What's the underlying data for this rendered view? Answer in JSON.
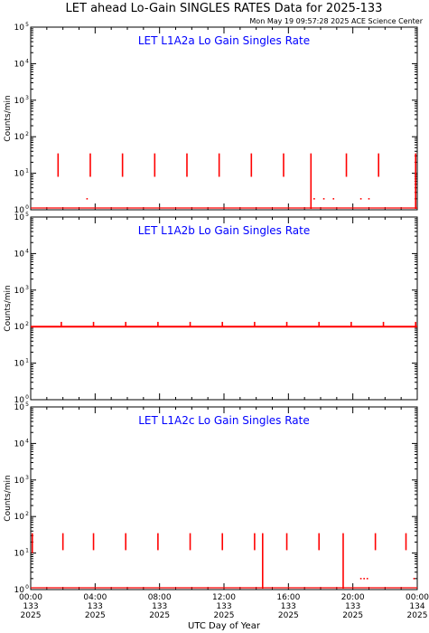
{
  "title": "LET ahead Lo-Gain SINGLES RATES Data for 2025-133",
  "timestamp": "Mon May 19 09:57:28 2025 ACE Science Center",
  "xlabel": "UTC Day of Year",
  "ylabel": "Counts/min",
  "colors": {
    "series": "#ff0000",
    "panel_title": "#0000ff",
    "axes": "#000000"
  },
  "x_ticks": [
    {
      "time": "00:00",
      "doy": "133",
      "year": "2025"
    },
    {
      "time": "04:00",
      "doy": "133",
      "year": "2025"
    },
    {
      "time": "08:00",
      "doy": "133",
      "year": "2025"
    },
    {
      "time": "12:00",
      "doy": "133",
      "year": "2025"
    },
    {
      "time": "16:00",
      "doy": "133",
      "year": "2025"
    },
    {
      "time": "20:00",
      "doy": "133",
      "year": "2025"
    },
    {
      "time": "00:00",
      "doy": "134",
      "year": "2025"
    }
  ],
  "y_tick_labels": [
    {
      "base": "10",
      "exp": "0"
    },
    {
      "base": "10",
      "exp": "1"
    },
    {
      "base": "10",
      "exp": "2"
    },
    {
      "base": "10",
      "exp": "3"
    },
    {
      "base": "10",
      "exp": "4"
    },
    {
      "base": "10",
      "exp": "5"
    }
  ],
  "chart_data": [
    {
      "type": "line",
      "title": "LET L1A2a Lo Gain Singles Rate",
      "xlabel": "UTC Day of Year",
      "ylabel": "Counts/min",
      "xlim": [
        0,
        24
      ],
      "ylim": [
        1,
        100000
      ],
      "log_y": true,
      "baseline": 1,
      "spikes": [
        {
          "x": 1.7,
          "top": 35,
          "bottom": 8
        },
        {
          "x": 3.7,
          "top": 35,
          "bottom": 8
        },
        {
          "x": 5.7,
          "top": 35,
          "bottom": 8
        },
        {
          "x": 7.7,
          "top": 35,
          "bottom": 8
        },
        {
          "x": 9.7,
          "top": 35,
          "bottom": 8
        },
        {
          "x": 11.7,
          "top": 35,
          "bottom": 8
        },
        {
          "x": 13.7,
          "top": 35,
          "bottom": 8
        },
        {
          "x": 15.7,
          "top": 35,
          "bottom": 8
        },
        {
          "x": 17.4,
          "top": 35,
          "bottom": 1
        },
        {
          "x": 19.6,
          "top": 35,
          "bottom": 8
        },
        {
          "x": 21.6,
          "top": 35,
          "bottom": 8
        },
        {
          "x": 23.9,
          "top": 35,
          "bottom": 1
        }
      ],
      "scatter": [
        {
          "x": 3.5,
          "y": 2
        },
        {
          "x": 17.6,
          "y": 2
        },
        {
          "x": 18.2,
          "y": 2
        },
        {
          "x": 18.8,
          "y": 2
        },
        {
          "x": 20.5,
          "y": 2
        },
        {
          "x": 21.0,
          "y": 2
        }
      ]
    },
    {
      "type": "line",
      "title": "LET L1A2b Lo Gain Singles Rate",
      "xlabel": "UTC Day of Year",
      "ylabel": "Counts/min",
      "xlim": [
        0,
        24
      ],
      "ylim": [
        1,
        100000
      ],
      "log_y": true,
      "baseline": 100,
      "spikes": [
        {
          "x": 1.9,
          "top": 135,
          "bottom": 100
        },
        {
          "x": 3.9,
          "top": 135,
          "bottom": 100
        },
        {
          "x": 5.9,
          "top": 135,
          "bottom": 100
        },
        {
          "x": 7.9,
          "top": 135,
          "bottom": 100
        },
        {
          "x": 9.9,
          "top": 135,
          "bottom": 100
        },
        {
          "x": 11.9,
          "top": 135,
          "bottom": 100
        },
        {
          "x": 13.9,
          "top": 135,
          "bottom": 100
        },
        {
          "x": 15.9,
          "top": 135,
          "bottom": 100
        },
        {
          "x": 17.9,
          "top": 135,
          "bottom": 100
        },
        {
          "x": 19.9,
          "top": 135,
          "bottom": 100
        },
        {
          "x": 21.9,
          "top": 135,
          "bottom": 100
        },
        {
          "x": 23.9,
          "top": 135,
          "bottom": 100
        }
      ],
      "scatter": []
    },
    {
      "type": "line",
      "title": "LET L1A2c Lo Gain Singles Rate",
      "xlabel": "UTC Day of Year",
      "ylabel": "Counts/min",
      "xlim": [
        0,
        24
      ],
      "ylim": [
        1,
        100000
      ],
      "log_y": true,
      "baseline": 1,
      "spikes": [
        {
          "x": 0.1,
          "top": 35,
          "bottom": 10
        },
        {
          "x": 2.0,
          "top": 35,
          "bottom": 12
        },
        {
          "x": 3.9,
          "top": 35,
          "bottom": 12
        },
        {
          "x": 5.9,
          "top": 35,
          "bottom": 12
        },
        {
          "x": 7.9,
          "top": 35,
          "bottom": 12
        },
        {
          "x": 9.9,
          "top": 35,
          "bottom": 12
        },
        {
          "x": 11.9,
          "top": 35,
          "bottom": 12
        },
        {
          "x": 13.9,
          "top": 35,
          "bottom": 12
        },
        {
          "x": 14.4,
          "top": 35,
          "bottom": 1
        },
        {
          "x": 15.9,
          "top": 35,
          "bottom": 12
        },
        {
          "x": 17.9,
          "top": 35,
          "bottom": 12
        },
        {
          "x": 19.4,
          "top": 35,
          "bottom": 1
        },
        {
          "x": 21.4,
          "top": 35,
          "bottom": 12
        },
        {
          "x": 23.3,
          "top": 35,
          "bottom": 12
        }
      ],
      "scatter": [
        {
          "x": 20.5,
          "y": 2
        },
        {
          "x": 20.7,
          "y": 2
        },
        {
          "x": 20.9,
          "y": 2
        },
        {
          "x": 23.8,
          "y": 2
        }
      ]
    }
  ]
}
